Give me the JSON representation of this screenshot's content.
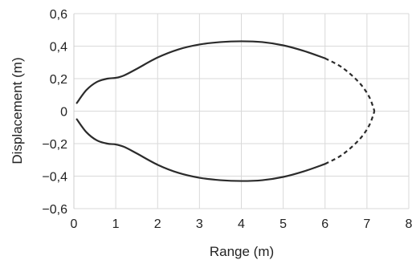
{
  "chart_data": {
    "type": "line",
    "title": "",
    "xlabel": "Range (m)",
    "ylabel": "Displacement (m)",
    "xlim": [
      0,
      8
    ],
    "ylim": [
      -0.6,
      0.6
    ],
    "x_ticks": [
      0,
      1,
      2,
      3,
      4,
      5,
      6,
      7,
      8
    ],
    "x_tick_labels": [
      "0",
      "1",
      "2",
      "3",
      "4",
      "5",
      "6",
      "7",
      "8"
    ],
    "y_ticks": [
      0.6,
      0.4,
      0.2,
      0,
      -0.2,
      -0.4,
      -0.6
    ],
    "y_tick_labels": [
      "0,6",
      "0,4",
      "0,2",
      "0",
      "−0,2",
      "−0,4",
      "−0,6"
    ],
    "grid": true,
    "colors": {
      "line": "#2b2b2b",
      "grid": "#d9d9d9"
    },
    "series": [
      {
        "style": "solid",
        "x": [
          0.07,
          0.3,
          0.55,
          0.8,
          1.0,
          1.2,
          1.5,
          2.0,
          2.5,
          3.0,
          3.5,
          4.0,
          4.5,
          5.0,
          5.5,
          6.0
        ],
        "y": [
          0.05,
          0.13,
          0.18,
          0.2,
          0.205,
          0.22,
          0.26,
          0.33,
          0.38,
          0.41,
          0.425,
          0.43,
          0.425,
          0.405,
          0.37,
          0.325
        ]
      },
      {
        "style": "dashed",
        "x": [
          6.0,
          6.4,
          6.8,
          7.05,
          7.18
        ],
        "y": [
          0.325,
          0.27,
          0.18,
          0.09,
          0.0
        ]
      },
      {
        "style": "solid",
        "x": [
          0.07,
          0.3,
          0.55,
          0.8,
          1.0,
          1.2,
          1.5,
          2.0,
          2.5,
          3.0,
          3.5,
          4.0,
          4.5,
          5.0,
          5.5,
          6.0
        ],
        "y": [
          -0.05,
          -0.13,
          -0.18,
          -0.2,
          -0.205,
          -0.22,
          -0.26,
          -0.33,
          -0.38,
          -0.41,
          -0.425,
          -0.43,
          -0.425,
          -0.405,
          -0.37,
          -0.325
        ]
      },
      {
        "style": "dashed",
        "x": [
          6.0,
          6.4,
          6.8,
          7.05,
          7.18
        ],
        "y": [
          -0.325,
          -0.27,
          -0.18,
          -0.09,
          0.0
        ]
      }
    ]
  }
}
